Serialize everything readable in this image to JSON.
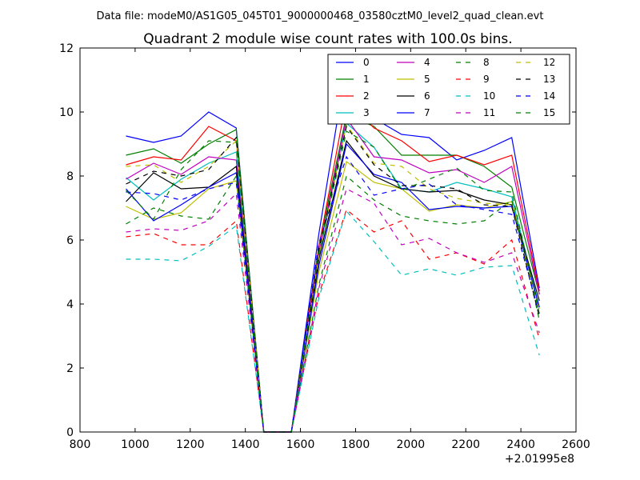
{
  "figure": {
    "suptitle": "Data file: modeM0/AS1G05_045T01_9000000468_03580cztM0_level2_quad_clean.evt",
    "title": "Quadrant 2 module wise count rates with 100.0s bins.",
    "offset_label": "+2.01995e8"
  },
  "chart_data": {
    "type": "line",
    "title": "Quadrant 2 module wise count rates with 100.0s bins.",
    "xlabel": "",
    "ylabel": "",
    "xlim": [
      800,
      2600
    ],
    "ylim": [
      0,
      12
    ],
    "x_offset": "+2.01995e8",
    "xticks": [
      "800",
      "1000",
      "1200",
      "1400",
      "1600",
      "1800",
      "2000",
      "2200",
      "2400",
      "2600"
    ],
    "yticks": [
      "0",
      "2",
      "4",
      "6",
      "8",
      "10",
      "12"
    ],
    "grid": false,
    "legend_position": "top-right",
    "x": [
      967,
      1067,
      1167,
      1267,
      1367,
      1467,
      1567,
      1667,
      1767,
      1867,
      1967,
      2067,
      2167,
      2267,
      2367,
      2467
    ],
    "series": [
      {
        "name": "0",
        "color": "#0000ff",
        "style": "solid",
        "values": [
          9.25,
          9.05,
          9.25,
          10.0,
          9.5,
          0,
          0,
          6.2,
          11.5,
          9.8,
          9.3,
          9.2,
          8.5,
          8.8,
          9.2,
          4.5
        ]
      },
      {
        "name": "1",
        "color": "#008000",
        "style": "solid",
        "values": [
          8.65,
          8.85,
          8.4,
          9.0,
          9.45,
          0,
          0,
          5.8,
          9.9,
          9.55,
          8.65,
          8.65,
          8.65,
          8.3,
          7.65,
          4.3
        ]
      },
      {
        "name": "2",
        "color": "#ff0000",
        "style": "solid",
        "values": [
          8.35,
          8.6,
          8.5,
          9.55,
          9.1,
          0,
          0,
          5.8,
          10.4,
          9.5,
          9.1,
          8.45,
          8.65,
          8.35,
          8.65,
          4.4
        ]
      },
      {
        "name": "3",
        "color": "#00bfbf",
        "style": "solid",
        "values": [
          7.95,
          7.25,
          7.9,
          8.4,
          8.75,
          0,
          0,
          5.5,
          9.65,
          8.9,
          7.6,
          7.5,
          7.8,
          7.6,
          7.35,
          3.9
        ]
      },
      {
        "name": "4",
        "color": "#bf00bf",
        "style": "solid",
        "values": [
          7.9,
          8.4,
          8.05,
          8.6,
          8.5,
          0,
          0,
          5.6,
          9.8,
          8.6,
          8.5,
          8.1,
          8.2,
          7.8,
          8.3,
          4.3
        ]
      },
      {
        "name": "5",
        "color": "#bfbf00",
        "style": "solid",
        "values": [
          7.05,
          6.65,
          6.85,
          7.6,
          7.85,
          0,
          0,
          5.0,
          8.45,
          7.8,
          7.6,
          6.9,
          7.1,
          7.0,
          7.2,
          3.85
        ]
      },
      {
        "name": "6",
        "color": "#000000",
        "style": "solid",
        "values": [
          7.2,
          8.1,
          7.6,
          7.65,
          8.3,
          0,
          0,
          5.4,
          9.1,
          8.0,
          7.6,
          7.5,
          7.55,
          7.25,
          7.1,
          4.1
        ]
      },
      {
        "name": "7",
        "color": "#0000ff",
        "style": "solid",
        "values": [
          7.6,
          6.6,
          7.1,
          7.65,
          8.1,
          0,
          0,
          5.2,
          9.0,
          8.05,
          7.8,
          6.95,
          7.05,
          7.0,
          7.05,
          3.9
        ]
      },
      {
        "name": "8",
        "color": "#008000",
        "style": "dashed",
        "values": [
          6.5,
          7.0,
          6.75,
          6.65,
          8.0,
          0,
          0,
          4.6,
          8.0,
          7.25,
          6.75,
          6.6,
          6.5,
          6.6,
          7.25,
          3.5
        ]
      },
      {
        "name": "9",
        "color": "#ff0000",
        "style": "dashed",
        "values": [
          6.1,
          6.2,
          5.85,
          5.85,
          6.6,
          0,
          0,
          4.3,
          6.95,
          6.25,
          6.6,
          5.4,
          5.6,
          5.25,
          6.0,
          2.9
        ]
      },
      {
        "name": "10",
        "color": "#00bfbf",
        "style": "dashed",
        "values": [
          5.4,
          5.4,
          5.35,
          5.8,
          6.45,
          0,
          0,
          4.2,
          6.9,
          5.95,
          4.9,
          5.1,
          4.9,
          5.15,
          5.2,
          2.4
        ]
      },
      {
        "name": "11",
        "color": "#bf00bf",
        "style": "dashed",
        "values": [
          6.25,
          6.35,
          6.3,
          6.6,
          7.45,
          0,
          0,
          4.5,
          7.6,
          7.15,
          5.85,
          6.05,
          5.6,
          5.3,
          5.6,
          3.1
        ]
      },
      {
        "name": "12",
        "color": "#bfbf00",
        "style": "dashed",
        "values": [
          8.3,
          8.35,
          7.8,
          8.3,
          9.1,
          0,
          0,
          5.5,
          9.6,
          8.4,
          8.3,
          7.6,
          7.3,
          7.15,
          7.1,
          3.7
        ]
      },
      {
        "name": "13",
        "color": "#000000",
        "style": "dashed",
        "values": [
          7.75,
          8.15,
          8.0,
          8.2,
          9.2,
          0,
          0,
          5.7,
          9.55,
          8.35,
          7.7,
          7.7,
          7.6,
          7.1,
          7.05,
          3.6
        ]
      },
      {
        "name": "14",
        "color": "#0000ff",
        "style": "dashed",
        "values": [
          7.5,
          7.45,
          7.25,
          7.6,
          7.8,
          0,
          0,
          5.9,
          8.6,
          7.4,
          7.6,
          7.75,
          7.1,
          6.95,
          6.8,
          3.7
        ]
      },
      {
        "name": "15",
        "color": "#008000",
        "style": "dashed",
        "values": [
          7.55,
          6.65,
          8.2,
          9.1,
          9.05,
          0,
          0,
          5.6,
          9.4,
          8.9,
          7.55,
          7.9,
          8.25,
          7.55,
          7.5,
          3.7
        ]
      }
    ]
  }
}
